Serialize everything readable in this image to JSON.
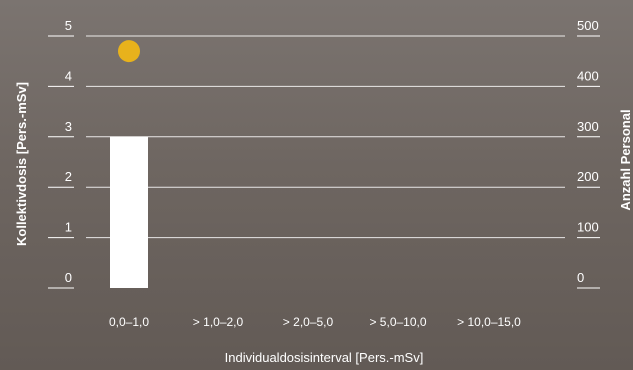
{
  "chart_data": {
    "type": "bar",
    "categories": [
      "0,0–1,0",
      "> 1,0–2,0",
      "> 2,0–5,0",
      "> 5,0–10,0",
      "> 10,0–15,0"
    ],
    "series": [
      {
        "kind": "bar",
        "axis": "left",
        "values": [
          3.0,
          null,
          null,
          null,
          null
        ],
        "color": "#ffffff"
      },
      {
        "kind": "point",
        "axis": "right",
        "values": [
          470,
          null,
          null,
          null,
          null
        ],
        "color": "#e8b21c"
      }
    ],
    "xlabel": "Individualdosisinterval [Pers.-mSv]",
    "ylabel_left": "Kollektivdosis [Pers.-mSv]",
    "ylabel_right": "Anzahl Personal",
    "ylim_left": [
      0,
      5
    ],
    "ylim_right": [
      0,
      500
    ],
    "yticks_left": [
      "0",
      "1",
      "2",
      "3",
      "4",
      "5"
    ],
    "yticks_right": [
      "0",
      "100",
      "200",
      "300",
      "400",
      "500"
    ],
    "grid": true,
    "legend": "none"
  },
  "colors": {
    "text": "#ffffff",
    "grid": "#ffffff",
    "bar": "#ffffff",
    "point": "#e8b21c"
  }
}
